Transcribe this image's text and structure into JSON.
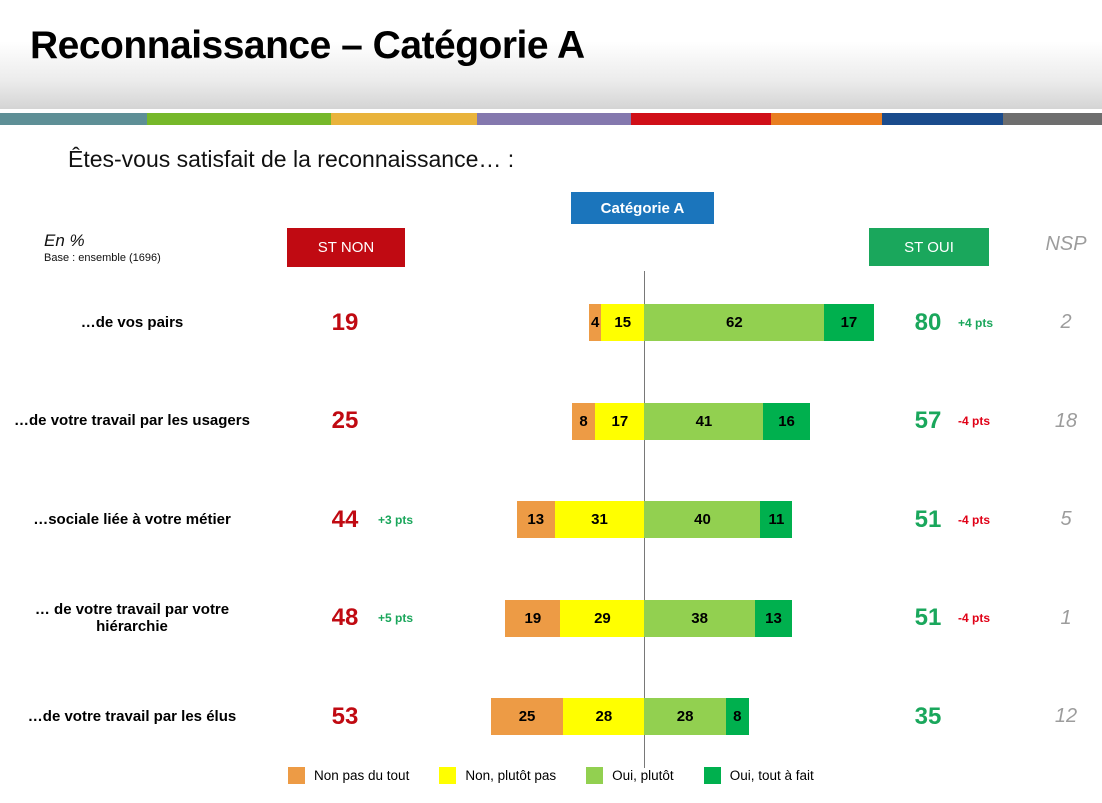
{
  "header": {
    "title": "Reconnaissance – Catégorie A",
    "stripe_colors": [
      "#5E8F96",
      "#76B82A",
      "#E9B33B",
      "#8478AE",
      "#D00F18",
      "#E97E20",
      "#1A4B8C",
      "#6E6E6E"
    ]
  },
  "question": "Êtes-vous satisfait de la reconnaissance… :",
  "category_badge": "Catégorie A",
  "notes": {
    "unit": "En %",
    "base": "Base : ensemble (1696)"
  },
  "columns": {
    "st_non": "ST NON",
    "st_oui": "ST OUI",
    "nsp": "NSP"
  },
  "colors": {
    "category_badge": "#1B75BC",
    "st_non_box": "#C00A12",
    "st_oui_box": "#1AA75C",
    "st_non_value": "#C00A12",
    "st_oui_value": "#1AA75C",
    "positive_delta": "#1AA65B",
    "negative_delta": "#E00016",
    "nsp_text": "#9C9C9C"
  },
  "chart_data": {
    "type": "bar",
    "variant": "diverging-stacked-horizontal",
    "unit": "%",
    "title": "Êtes-vous satisfait de la reconnaissance… :",
    "categories": [
      "…de vos pairs",
      "…de votre travail par les usagers",
      "…sociale liée à votre métier",
      "… de votre travail par votre hiérarchie",
      "…de votre travail par les élus"
    ],
    "series": [
      {
        "name": "Non pas du tout",
        "color": "#ED9B45",
        "values": [
          4,
          8,
          13,
          19,
          25
        ]
      },
      {
        "name": "Non, plutôt pas",
        "color": "#FFFF00",
        "values": [
          15,
          17,
          31,
          29,
          28
        ]
      },
      {
        "name": "Oui, plutôt",
        "color": "#92D050",
        "values": [
          62,
          41,
          40,
          38,
          28
        ]
      },
      {
        "name": "Oui, tout à fait",
        "color": "#00B04E",
        "values": [
          17,
          16,
          11,
          13,
          8
        ]
      }
    ],
    "st_non": [
      19,
      25,
      44,
      48,
      53
    ],
    "st_non_delta": [
      "",
      "",
      "+3 pts",
      "+5 pts",
      ""
    ],
    "st_oui": [
      80,
      57,
      51,
      51,
      35
    ],
    "st_oui_delta": [
      "+4 pts",
      "-4 pts",
      "-4 pts",
      "-4 pts",
      ""
    ],
    "nsp": [
      2,
      18,
      5,
      1,
      12
    ],
    "legend_position": "bottom",
    "axis_note": "bars centered on the Non/Oui boundary, values in %"
  }
}
